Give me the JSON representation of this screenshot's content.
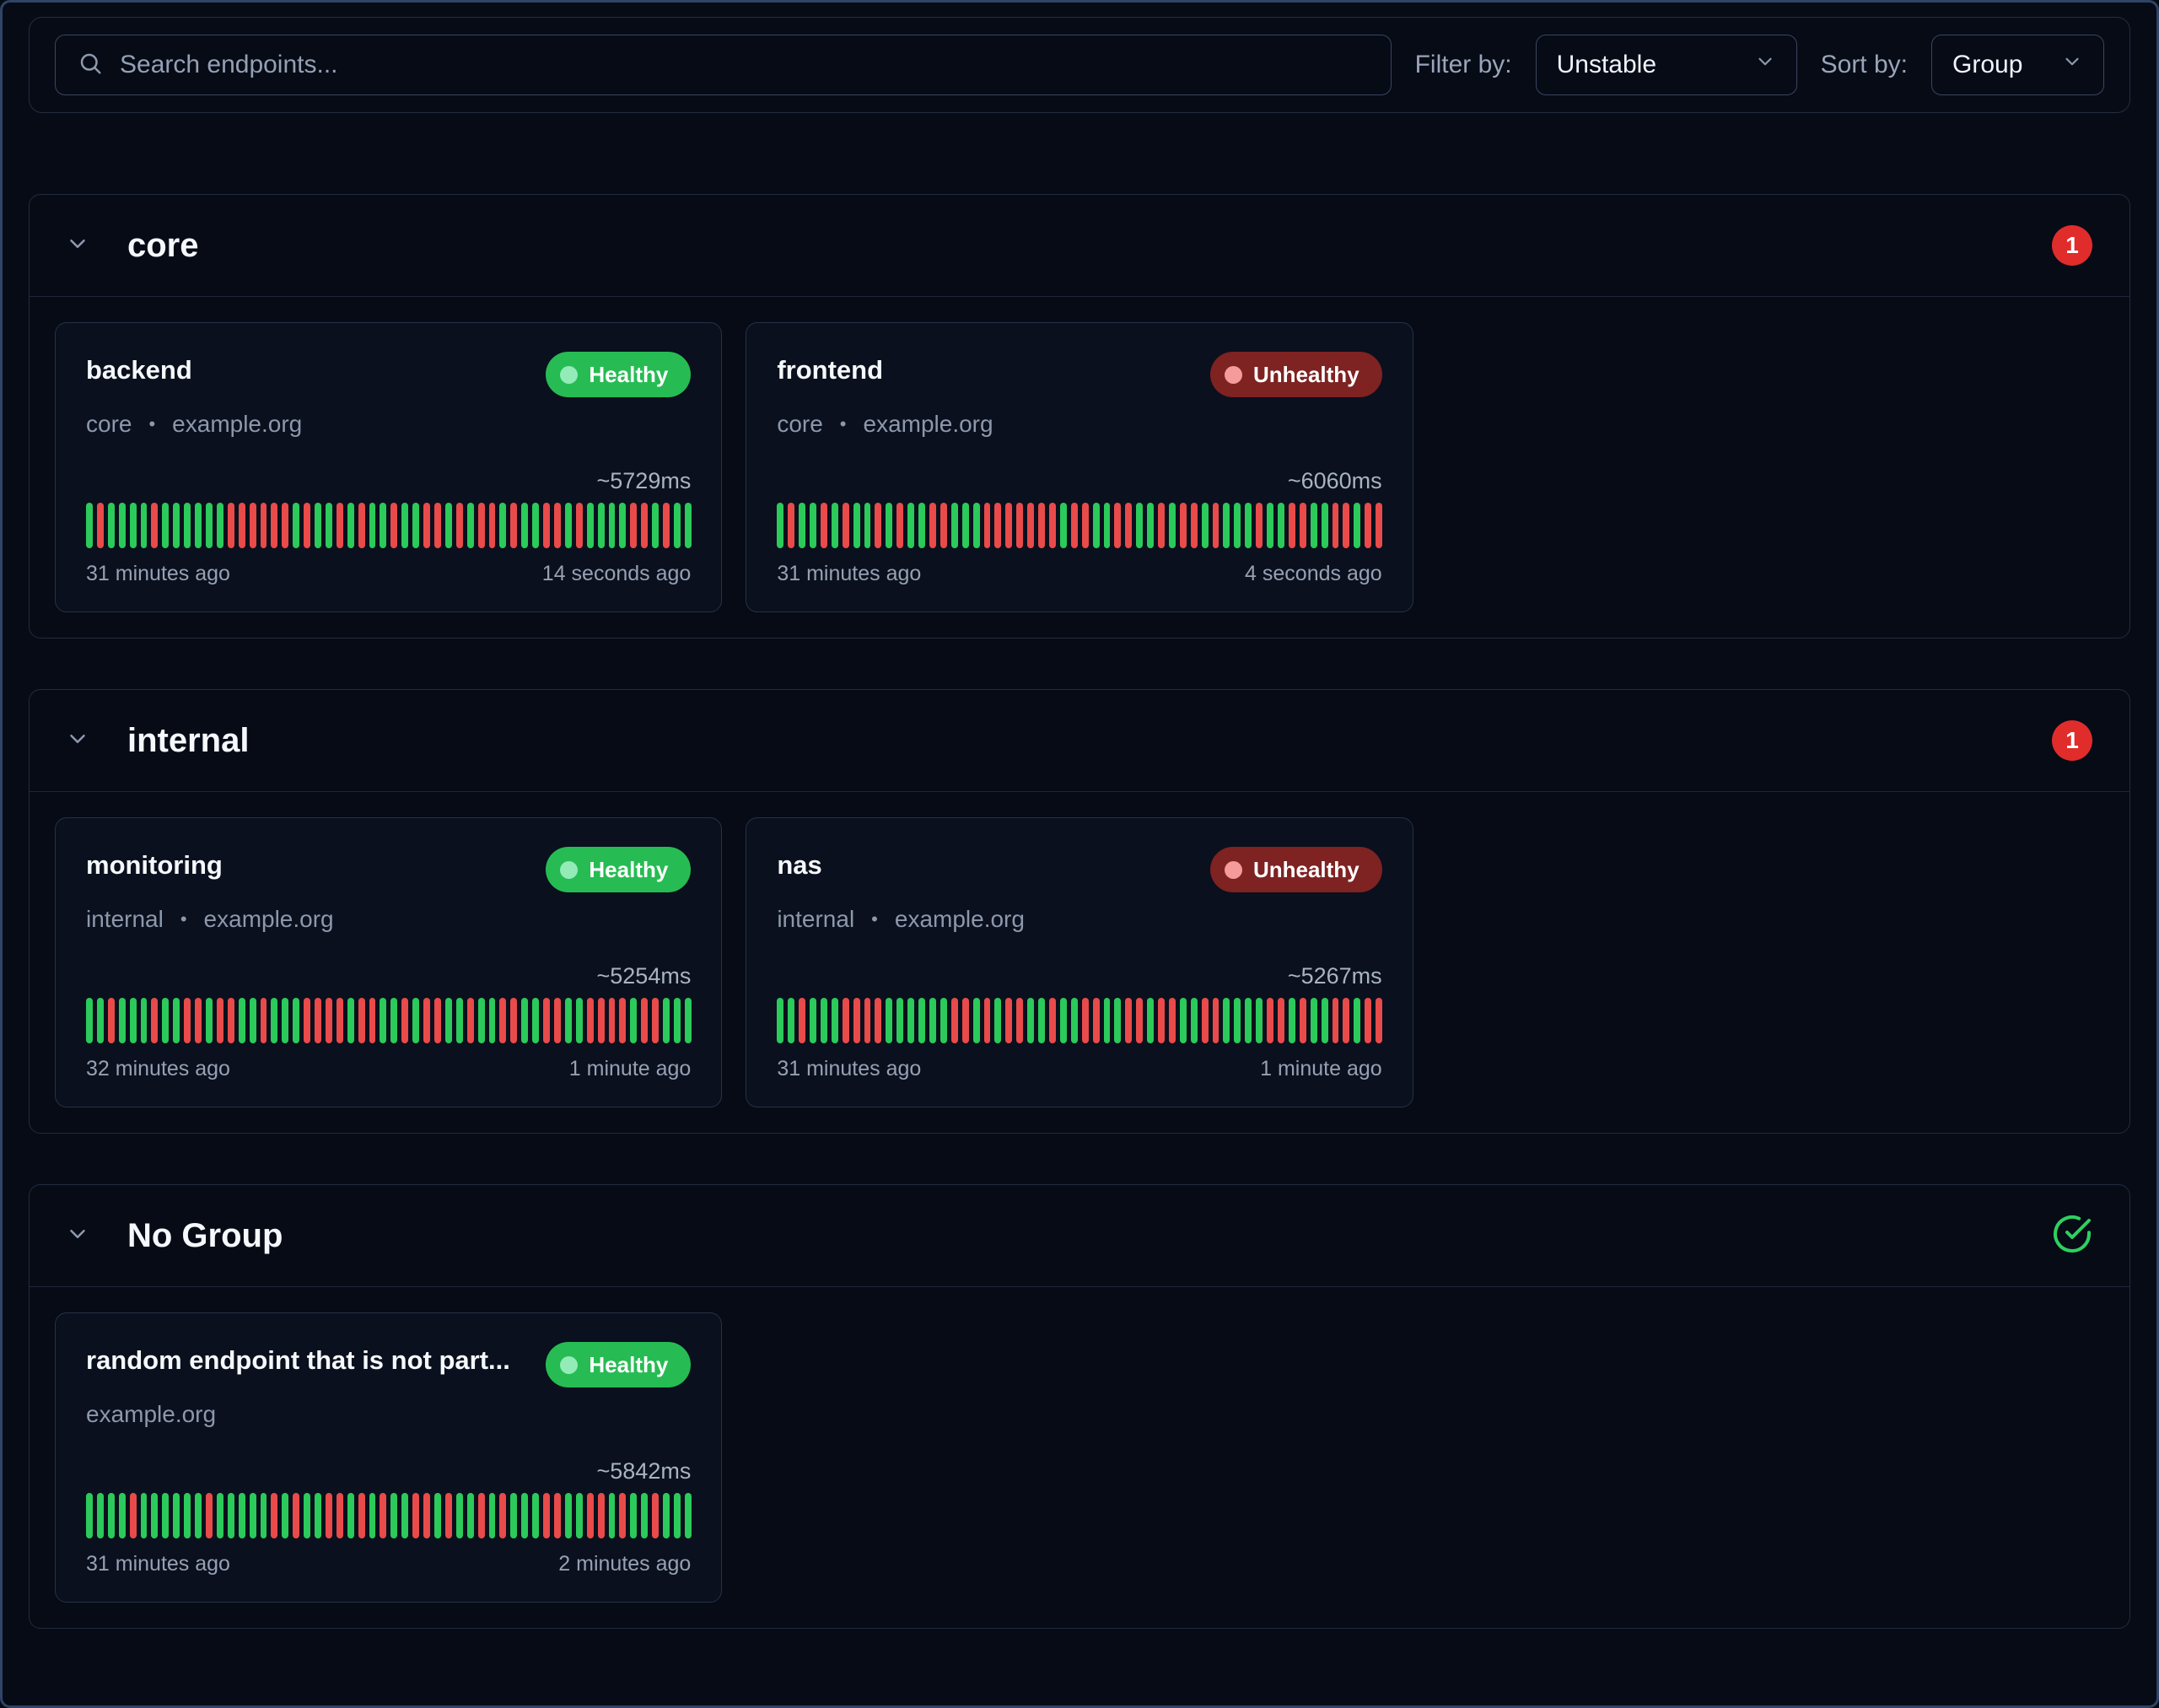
{
  "toolbar": {
    "search_placeholder": "Search endpoints...",
    "filter_label": "Filter by:",
    "filter_value": "Unstable",
    "sort_label": "Sort by:",
    "sort_value": "Group"
  },
  "icons": {
    "search": "magnifier",
    "select_caret": "chevron-down",
    "group_collapse": "chevron-down",
    "group_all_healthy": "circle-check"
  },
  "colors": {
    "page_bg": "#060b16",
    "card_bg": "#0a101d",
    "healthy_badge": "#26bc53",
    "unhealthy_badge": "#7e2222",
    "bar_green": "#2bca5a",
    "bar_red": "#e94a4a",
    "count_badge": "#e12c2c",
    "check_icon": "#2ed05f"
  },
  "groups": [
    {
      "name": "core",
      "badge": {
        "type": "count",
        "value": "1"
      },
      "endpoints": [
        {
          "name": "backend",
          "status": "Healthy",
          "healthy": true,
          "meta": [
            "core",
            "example.org"
          ],
          "response_time": "~5729ms",
          "bars": "grggggrggggggrrrrrrgrggrgrggrggrrgrgrrgrggrrgrggggrrgrgg",
          "from": "31 minutes ago",
          "to": "14 seconds ago"
        },
        {
          "name": "frontend",
          "status": "Unhealthy",
          "healthy": false,
          "meta": [
            "core",
            "example.org"
          ],
          "response_time": "~6060ms",
          "bars": "grggrgrggrgrggrrgggrrrrrrrgrrggrrggrgrrgrgggrggrrggrrgrr",
          "from": "31 minutes ago",
          "to": "4 seconds ago"
        }
      ]
    },
    {
      "name": "internal",
      "badge": {
        "type": "count",
        "value": "1"
      },
      "endpoints": [
        {
          "name": "monitoring",
          "status": "Healthy",
          "healthy": true,
          "meta": [
            "internal",
            "example.org"
          ],
          "response_time": "~5254ms",
          "bars": "ggrgggrggrrgrrggrgggrrrrgrrggrgrrggrggrrggrrggrrrrgrrggg",
          "from": "32 minutes ago",
          "to": "1 minute ago"
        },
        {
          "name": "nas",
          "status": "Unhealthy",
          "healthy": false,
          "meta": [
            "internal",
            "example.org"
          ],
          "response_time": "~5267ms",
          "bars": "ggrgggrrrrggggggrrgrgrrggrggrrggrrgrrggrrggggrrgrggrrgrr",
          "from": "31 minutes ago",
          "to": "1 minute ago"
        }
      ]
    },
    {
      "name": "No Group",
      "badge": {
        "type": "check"
      },
      "endpoints": [
        {
          "name": "random endpoint that is not part...",
          "status": "Healthy",
          "healthy": true,
          "meta": [
            "example.org"
          ],
          "response_time": "~5842ms",
          "bars": "ggggrggggggrgggggrgrggrrgrgrggrrgrggrgrgggrrggrrgrggrggg",
          "from": "31 minutes ago",
          "to": "2 minutes ago"
        }
      ]
    }
  ]
}
